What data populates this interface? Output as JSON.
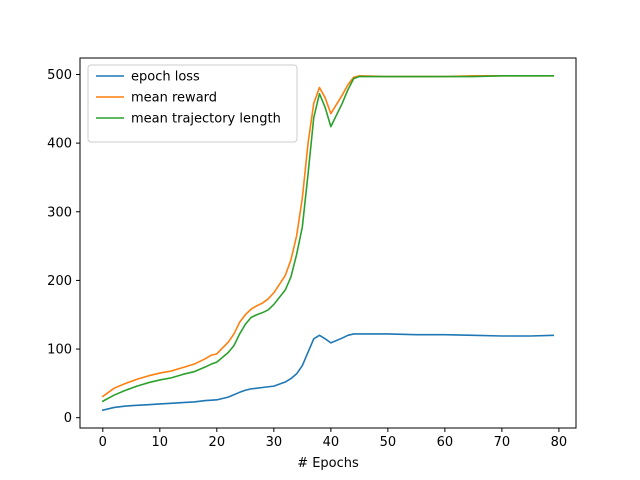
{
  "chart_data": {
    "type": "line",
    "xlabel": "# Epochs",
    "ylabel": "",
    "xlim": [
      -4,
      83
    ],
    "ylim": [
      -15,
      524
    ],
    "xticks": [
      0,
      10,
      20,
      30,
      40,
      50,
      60,
      70,
      80
    ],
    "yticks": [
      0,
      100,
      200,
      300,
      400,
      500
    ],
    "grid": false,
    "legend_position": "top-left",
    "series": [
      {
        "name": "epoch loss",
        "color": "#1f77b4",
        "x": [
          0,
          2,
          4,
          6,
          8,
          10,
          12,
          14,
          16,
          18,
          20,
          22,
          24,
          25,
          26,
          28,
          30,
          32,
          33,
          34,
          35,
          37,
          38,
          39,
          40,
          42,
          43,
          44,
          45,
          50,
          55,
          60,
          65,
          70,
          75,
          79
        ],
        "y": [
          11,
          15,
          17,
          18,
          19,
          20,
          21,
          22,
          23,
          25,
          26,
          30,
          37,
          40,
          42,
          44,
          46,
          52,
          57,
          64,
          76,
          115,
          120,
          115,
          109,
          116,
          120,
          122,
          122,
          122,
          121,
          121,
          120,
          119,
          119,
          120
        ]
      },
      {
        "name": "mean reward",
        "color": "#ff7f0e",
        "x": [
          0,
          2,
          4,
          6,
          8,
          10,
          12,
          14,
          16,
          18,
          19,
          20,
          22,
          23,
          24,
          25,
          26,
          27,
          28,
          29,
          30,
          32,
          33,
          34,
          35,
          36,
          37,
          38,
          39,
          40,
          42,
          43,
          44,
          45,
          50,
          55,
          60,
          65,
          70,
          75,
          79
        ],
        "y": [
          31,
          43,
          50,
          56,
          61,
          65,
          68,
          73,
          78,
          86,
          91,
          93,
          110,
          122,
          139,
          150,
          158,
          163,
          167,
          173,
          182,
          207,
          230,
          265,
          320,
          400,
          458,
          481,
          466,
          443,
          470,
          485,
          496,
          498,
          497,
          497,
          497,
          498,
          498,
          498,
          498
        ]
      },
      {
        "name": "mean trajectory length",
        "color": "#2ca02c",
        "x": [
          0,
          2,
          4,
          6,
          8,
          10,
          12,
          14,
          16,
          18,
          19,
          20,
          22,
          23,
          24,
          25,
          26,
          27,
          28,
          29,
          30,
          32,
          33,
          34,
          35,
          36,
          37,
          38,
          39,
          40,
          42,
          43,
          44,
          45,
          50,
          55,
          60,
          65,
          70,
          75,
          79
        ],
        "y": [
          24,
          33,
          40,
          46,
          51,
          55,
          58,
          63,
          67,
          74,
          78,
          81,
          95,
          105,
          122,
          136,
          146,
          150,
          153,
          157,
          165,
          186,
          205,
          238,
          278,
          355,
          437,
          472,
          452,
          424,
          458,
          478,
          494,
          497,
          497,
          497,
          497,
          497,
          498,
          498,
          498
        ]
      }
    ]
  }
}
